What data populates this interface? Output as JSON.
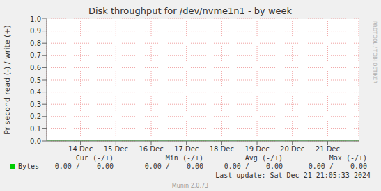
{
  "chart_data": {
    "type": "line",
    "title": "Disk throughput for /dev/nvme1n1 - by week",
    "y_label": "Pr second read (-) / write (+)",
    "x": [
      13.04,
      14,
      15,
      16,
      17,
      18,
      19,
      20,
      21,
      21.88
    ],
    "series": [
      {
        "name": "Bytes",
        "color": "#00cc00",
        "values": [
          0,
          0,
          0,
          0,
          0,
          0,
          0,
          0,
          0,
          0
        ]
      }
    ],
    "xlim": [
      13.04,
      21.88
    ],
    "xticks": [
      {
        "value": 14,
        "label": "14 Dec"
      },
      {
        "value": 15,
        "label": "15 Dec"
      },
      {
        "value": 16,
        "label": "16 Dec"
      },
      {
        "value": 17,
        "label": "17 Dec"
      },
      {
        "value": 18,
        "label": "18 Dec"
      },
      {
        "value": 19,
        "label": "19 Dec"
      },
      {
        "value": 20,
        "label": "20 Dec"
      },
      {
        "value": 21,
        "label": "21 Dec"
      }
    ],
    "ylim": [
      0,
      1
    ],
    "yticks": [
      {
        "value": 0,
        "label": "0.0"
      },
      {
        "value": 0.1,
        "label": "0.1"
      },
      {
        "value": 0.2,
        "label": "0.2"
      },
      {
        "value": 0.3,
        "label": "0.3"
      },
      {
        "value": 0.4,
        "label": "0.4"
      },
      {
        "value": 0.5,
        "label": "0.5"
      },
      {
        "value": 0.6,
        "label": "0.6"
      },
      {
        "value": 0.7,
        "label": "0.7"
      },
      {
        "value": 0.8,
        "label": "0.8"
      },
      {
        "value": 0.9,
        "label": "0.9"
      },
      {
        "value": 1,
        "label": "1.0"
      }
    ],
    "grid": true,
    "legend_table": {
      "columns": [
        "Cur (-/+)",
        "Min (-/+)",
        "Avg (-/+)",
        "Max (-/+)"
      ],
      "rows": [
        {
          "name": "Bytes",
          "cells": [
            "0.00 /    0.00",
            "0.00 /    0.00",
            "0.00 /    0.00",
            "0.00 /    0.00"
          ]
        }
      ]
    },
    "footer": "Last update: Sat Dec 21 21:05:33 2024",
    "credit": "Munin 2.0.73",
    "watermark": "RRDTOOL / TOBI OETIKER"
  }
}
